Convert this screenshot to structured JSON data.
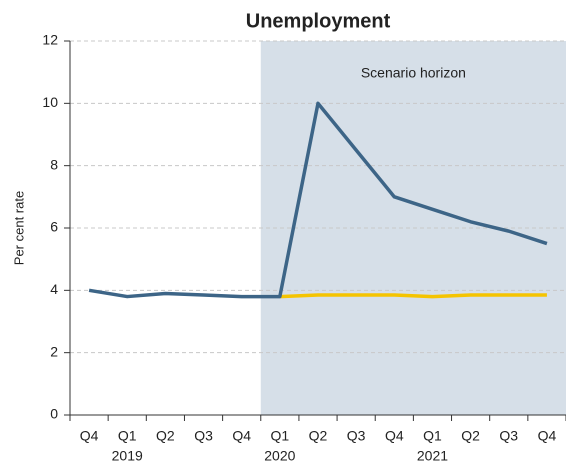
{
  "chart_data": {
    "type": "line",
    "title": "Unemployment",
    "y_label": "Per cent rate",
    "annotation": "Scenario horizon",
    "categories": [
      "Q4",
      "Q1",
      "Q2",
      "Q3",
      "Q4",
      "Q1",
      "Q2",
      "Q3",
      "Q4",
      "Q1",
      "Q2",
      "Q3",
      "Q4"
    ],
    "year_labels": [
      null,
      "2019",
      null,
      null,
      null,
      "2020",
      null,
      null,
      null,
      "2021",
      null,
      null,
      null
    ],
    "series": [
      {
        "color": "#3d6587",
        "values": [
          4.0,
          3.8,
          3.9,
          3.85,
          3.8,
          3.8,
          10.0,
          8.5,
          7.0,
          6.6,
          6.2,
          5.9,
          5.5
        ]
      },
      {
        "color": "#f5c400",
        "values": [
          null,
          null,
          null,
          null,
          null,
          3.8,
          3.85,
          3.85,
          3.85,
          3.8,
          3.85,
          3.85,
          3.85
        ]
      }
    ],
    "shade_color": "#d6dfe8",
    "ylim": [
      0,
      12
    ],
    "yticks": [
      0,
      2,
      4,
      6,
      8,
      10,
      12
    ],
    "grid": true
  }
}
